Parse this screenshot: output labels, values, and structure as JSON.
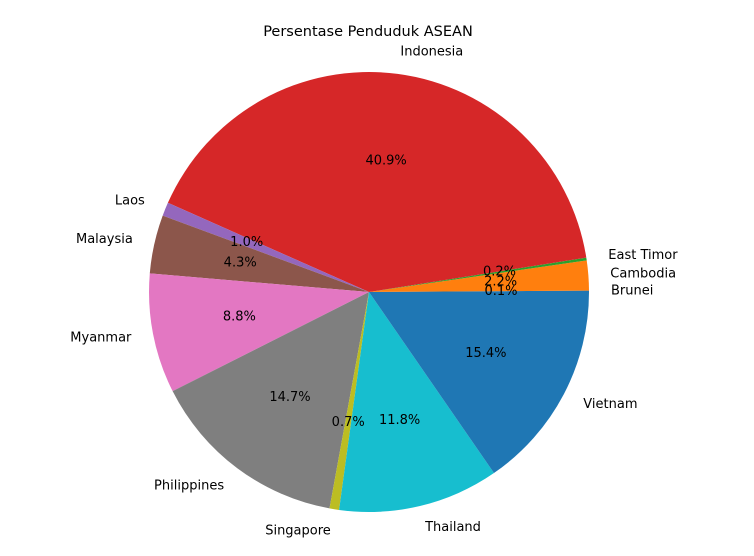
{
  "chart_data": {
    "type": "pie",
    "title": "Persentase Penduduk ASEAN",
    "categories": [
      "Brunei",
      "Cambodia",
      "East Timor",
      "Indonesia",
      "Laos",
      "Malaysia",
      "Myanmar",
      "Philippines",
      "Singapore",
      "Thailand",
      "Vietnam"
    ],
    "values": [
      0.1,
      2.2,
      0.2,
      40.9,
      1.0,
      4.3,
      8.8,
      14.7,
      0.7,
      11.8,
      15.4
    ],
    "pct_labels": [
      "0.1%",
      "2.2%",
      "0.2%",
      "40.9%",
      "1.0%",
      "4.3%",
      "8.8%",
      "14.7%",
      "0.7%",
      "11.8%",
      "15.4%"
    ],
    "colors": [
      "#1f77b4",
      "#ff7f0e",
      "#2ca02c",
      "#d62728",
      "#9467bd",
      "#8c564b",
      "#e377c2",
      "#7f7f7f",
      "#bcbd22",
      "#17becf",
      "#1f77b4"
    ],
    "start_angle": 0,
    "direction": "counterclockwise"
  }
}
